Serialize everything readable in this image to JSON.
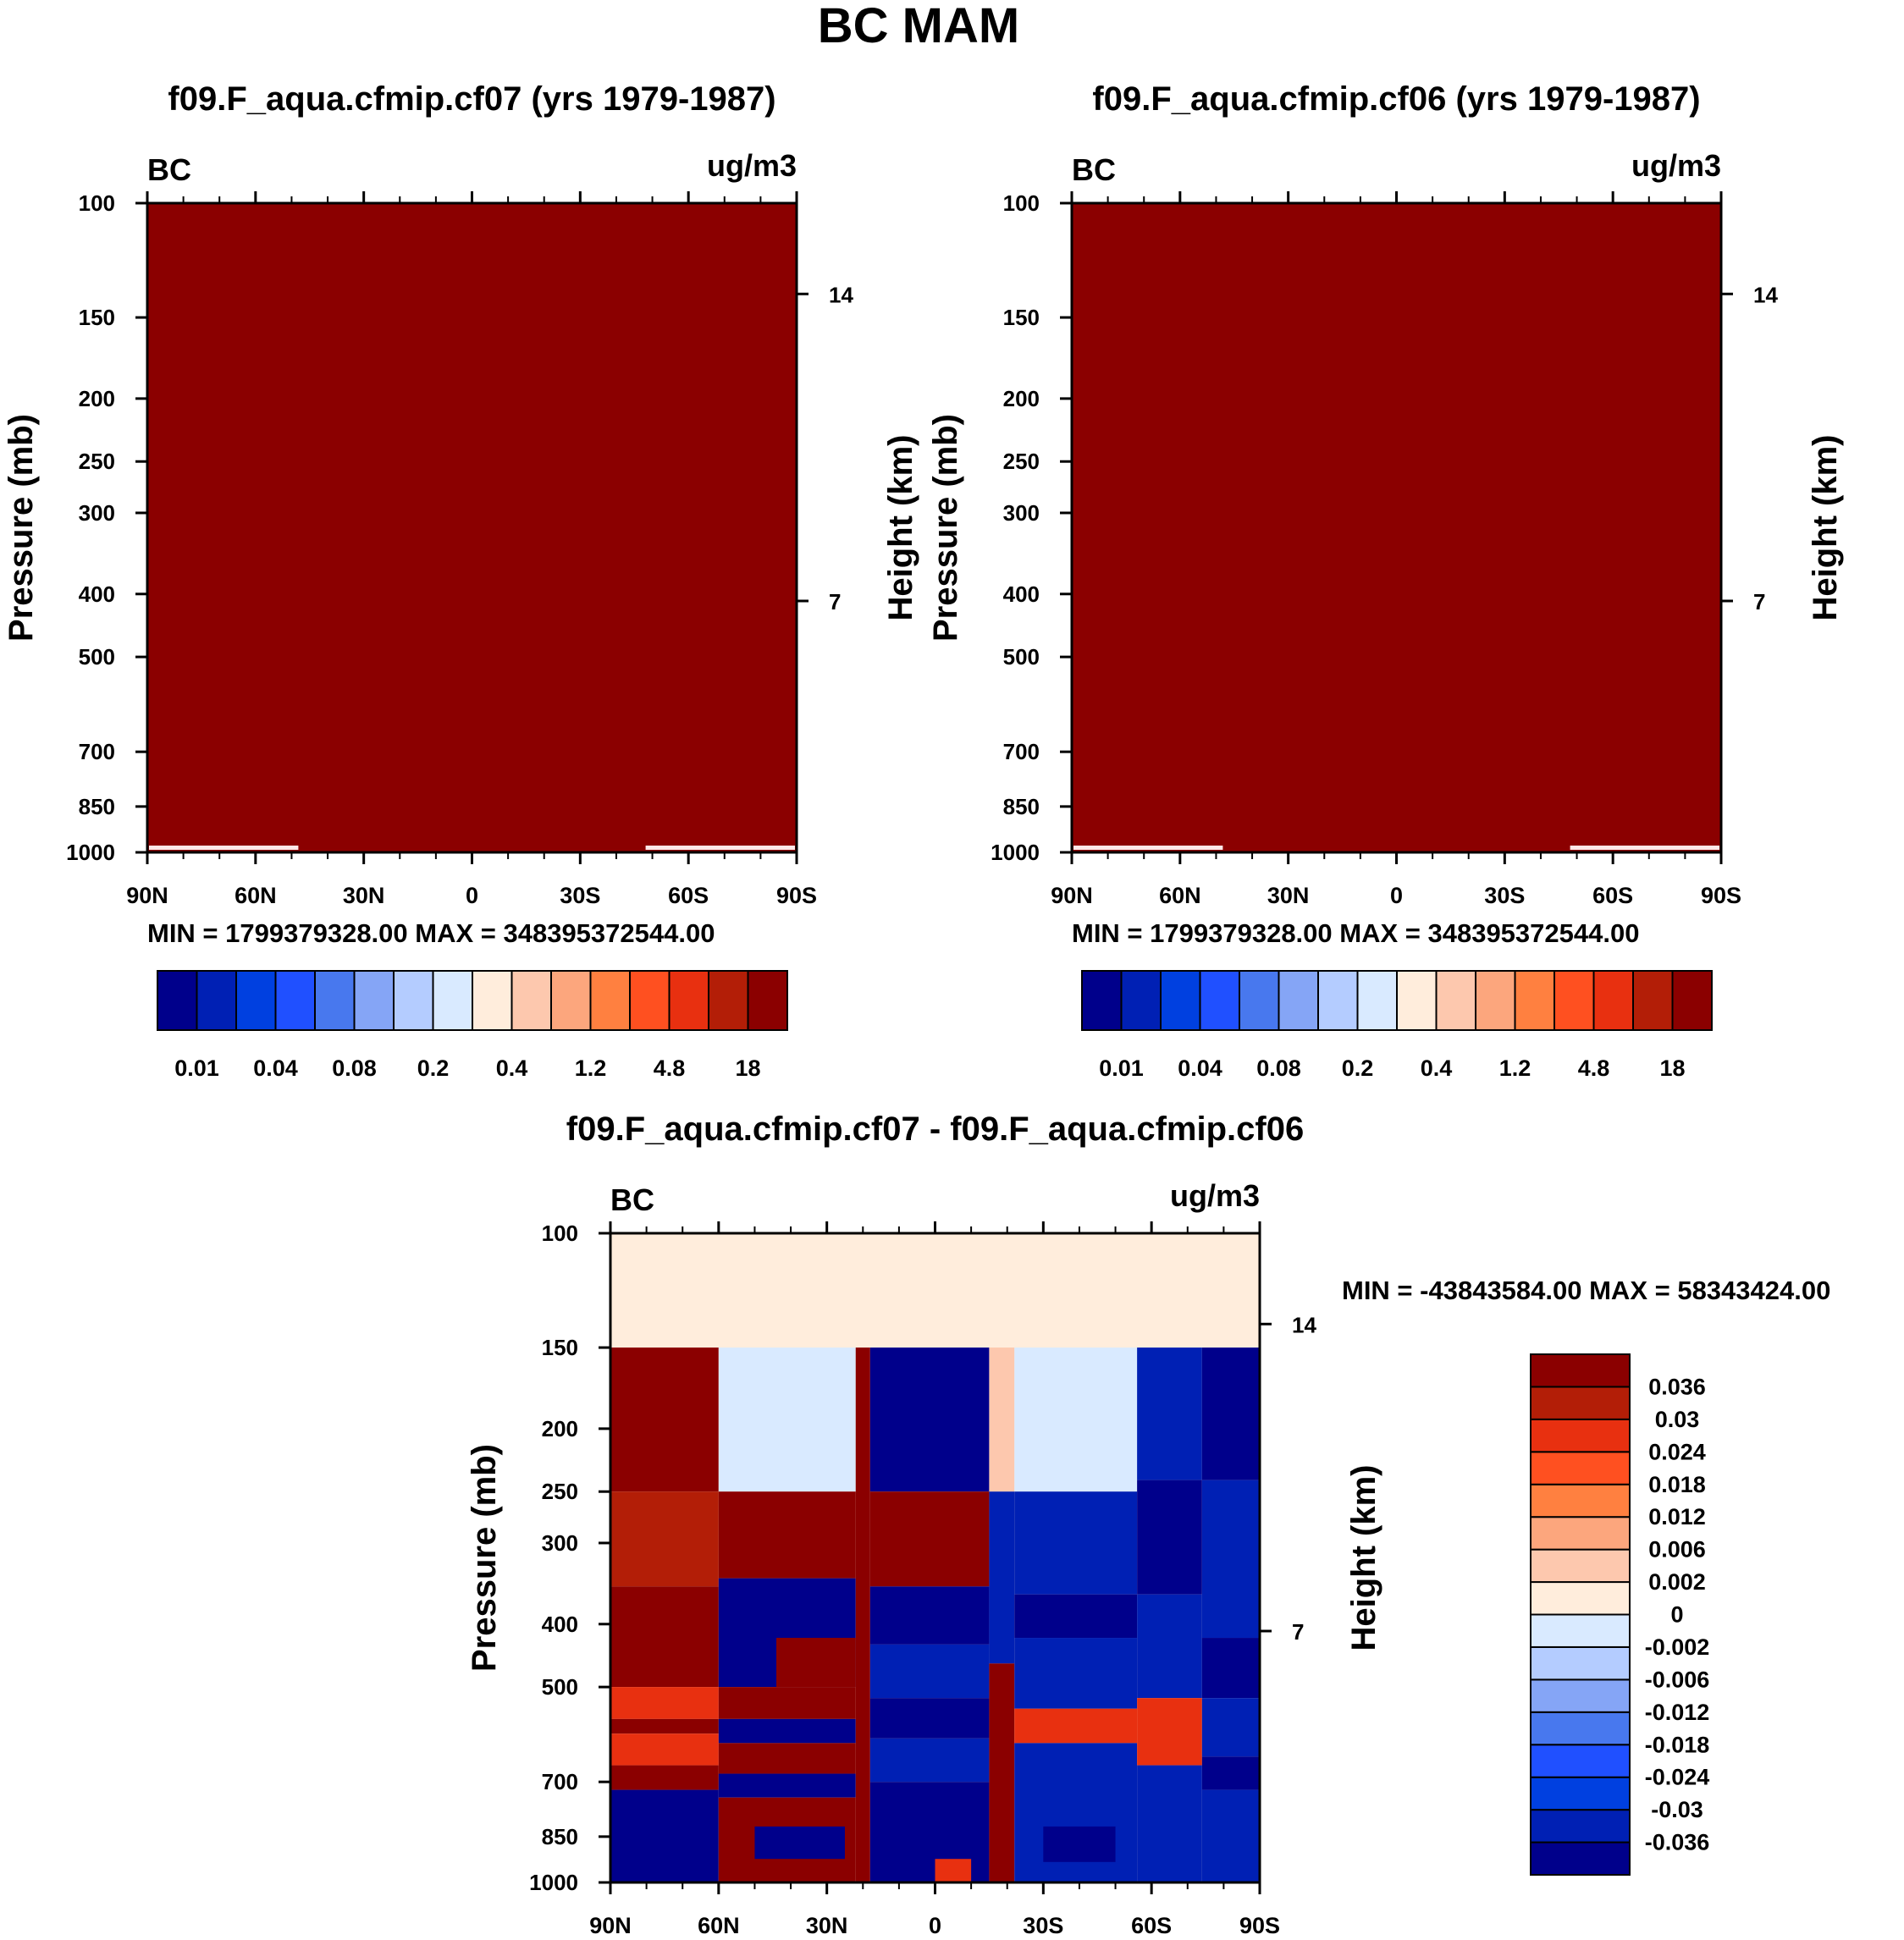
{
  "page_title": "BC MAM",
  "colors": {
    "seq": [
      "#00008b",
      "#0020b4",
      "#0040e0",
      "#2050ff",
      "#4878ee",
      "#85a5f6",
      "#b4ccff",
      "#d9eaff",
      "#ffeddc",
      "#fdc8ae",
      "#fca67d",
      "#ff8040",
      "#ff5020",
      "#e83010",
      "#b31e07",
      "#8b0000"
    ],
    "diff": [
      "#00008b",
      "#0020b4",
      "#0040e0",
      "#2050ff",
      "#4878ee",
      "#85a5f6",
      "#b4ccff",
      "#d9eaff",
      "#ffeddc",
      "#fdc8ae",
      "#fca67d",
      "#ff8040",
      "#ff5020",
      "#e83010",
      "#b31e07",
      "#8b0000"
    ]
  },
  "chart_data": [
    {
      "id": "top_left",
      "type": "heatmap",
      "title": "f09.F_aqua.cfmip.cf07 (yrs 1979-1987)",
      "variable": "BC",
      "units": "ug/m3",
      "ylabel": "Pressure (mb)",
      "ylabel_right": "Height (km)",
      "x_ticks": [
        "90N",
        "60N",
        "30N",
        "0",
        "30S",
        "60S",
        "90S"
      ],
      "x_values": [
        90,
        60,
        30,
        0,
        -30,
        -60,
        -90
      ],
      "y_ticks": [
        100,
        150,
        200,
        250,
        300,
        400,
        500,
        700,
        850,
        1000
      ],
      "y_range": [
        100,
        1000
      ],
      "right_ticks": [
        {
          "km": "14",
          "p": 138
        },
        {
          "km": "7",
          "p": 410
        }
      ],
      "min_max": "MIN = 1799379328.00   MAX = 348395372544.00",
      "field": "uniform maximum (dark red) over whole domain",
      "colorbar_labels": [
        "0.01",
        "0.04",
        "0.08",
        "0.2",
        "0.4",
        "1.2",
        "4.8",
        "18"
      ],
      "colorbar_levels": [
        0.005,
        0.01,
        0.02,
        0.04,
        0.06,
        0.08,
        0.1,
        0.2,
        0.3,
        0.4,
        0.8,
        1.2,
        2.4,
        4.8,
        9.6,
        18
      ]
    },
    {
      "id": "top_right",
      "type": "heatmap",
      "title": "f09.F_aqua.cfmip.cf06 (yrs 1979-1987)",
      "variable": "BC",
      "units": "ug/m3",
      "ylabel": "Pressure (mb)",
      "ylabel_right": "Height (km)",
      "x_ticks": [
        "90N",
        "60N",
        "30N",
        "0",
        "30S",
        "60S",
        "90S"
      ],
      "x_values": [
        90,
        60,
        30,
        0,
        -30,
        -60,
        -90
      ],
      "y_ticks": [
        100,
        150,
        200,
        250,
        300,
        400,
        500,
        700,
        850,
        1000
      ],
      "y_range": [
        100,
        1000
      ],
      "right_ticks": [
        {
          "km": "14",
          "p": 138
        },
        {
          "km": "7",
          "p": 410
        }
      ],
      "min_max": "MIN = 1799379328.00   MAX = 348395372544.00",
      "field": "uniform maximum (dark red) over whole domain",
      "colorbar_labels": [
        "0.01",
        "0.04",
        "0.08",
        "0.2",
        "0.4",
        "1.2",
        "4.8",
        "18"
      ],
      "colorbar_levels": [
        0.005,
        0.01,
        0.02,
        0.04,
        0.06,
        0.08,
        0.1,
        0.2,
        0.3,
        0.4,
        0.8,
        1.2,
        2.4,
        4.8,
        9.6,
        18
      ]
    },
    {
      "id": "difference",
      "type": "heatmap",
      "title": "f09.F_aqua.cfmip.cf07 - f09.F_aqua.cfmip.cf06",
      "variable": "BC",
      "units": "ug/m3",
      "ylabel": "Pressure (mb)",
      "ylabel_right": "Height (km)",
      "x_ticks": [
        "90N",
        "60N",
        "30N",
        "0",
        "30S",
        "60S",
        "90S"
      ],
      "x_values": [
        90,
        60,
        30,
        0,
        -30,
        -60,
        -90
      ],
      "y_ticks": [
        100,
        150,
        200,
        250,
        300,
        400,
        500,
        700,
        850,
        1000
      ],
      "y_range": [
        100,
        1000
      ],
      "right_ticks": [
        {
          "km": "14",
          "p": 138
        },
        {
          "km": "7",
          "p": 410
        }
      ],
      "min_max": "MIN = -43843584.00   MAX = 58343424.00",
      "colorbar_labels": [
        "0.036",
        "0.03",
        "0.024",
        "0.018",
        "0.012",
        "0.006",
        "0.002",
        "0",
        "-0.002",
        "-0.006",
        "-0.012",
        "-0.018",
        "-0.024",
        "-0.03",
        "-0.036"
      ],
      "blocks": [
        {
          "lat": [
            90,
            60
          ],
          "p": [
            100,
            150
          ],
          "c": 8
        },
        {
          "lat": [
            60,
            30
          ],
          "p": [
            100,
            150
          ],
          "c": 8
        },
        {
          "lat": [
            30,
            0
          ],
          "p": [
            100,
            150
          ],
          "c": 8
        },
        {
          "lat": [
            0,
            -30
          ],
          "p": [
            100,
            150
          ],
          "c": 8
        },
        {
          "lat": [
            -30,
            -60
          ],
          "p": [
            100,
            150
          ],
          "c": 8
        },
        {
          "lat": [
            -60,
            -90
          ],
          "p": [
            100,
            150
          ],
          "c": 8
        },
        {
          "lat": [
            90,
            60
          ],
          "p": [
            150,
            250
          ],
          "c": 15
        },
        {
          "lat": [
            90,
            60
          ],
          "p": [
            250,
            350
          ],
          "c": 14
        },
        {
          "lat": [
            90,
            60
          ],
          "p": [
            350,
            500
          ],
          "c": 15
        },
        {
          "lat": [
            90,
            60
          ],
          "p": [
            500,
            560
          ],
          "c": 13
        },
        {
          "lat": [
            90,
            60
          ],
          "p": [
            560,
            590
          ],
          "c": 15
        },
        {
          "lat": [
            90,
            60
          ],
          "p": [
            590,
            660
          ],
          "c": 13
        },
        {
          "lat": [
            90,
            60
          ],
          "p": [
            660,
            720
          ],
          "c": 15
        },
        {
          "lat": [
            90,
            60
          ],
          "p": [
            720,
            1000
          ],
          "c": 0
        },
        {
          "lat": [
            60,
            22
          ],
          "p": [
            150,
            250
          ],
          "c": 7
        },
        {
          "lat": [
            60,
            22
          ],
          "p": [
            250,
            340
          ],
          "c": 15
        },
        {
          "lat": [
            60,
            22
          ],
          "p": [
            340,
            500
          ],
          "c": 0
        },
        {
          "lat": [
            44,
            22
          ],
          "p": [
            420,
            500
          ],
          "c": 15
        },
        {
          "lat": [
            60,
            22
          ],
          "p": [
            500,
            560
          ],
          "c": 15
        },
        {
          "lat": [
            60,
            22
          ],
          "p": [
            560,
            610
          ],
          "c": 0
        },
        {
          "lat": [
            60,
            22
          ],
          "p": [
            610,
            680
          ],
          "c": 15
        },
        {
          "lat": [
            60,
            22
          ],
          "p": [
            680,
            740
          ],
          "c": 0
        },
        {
          "lat": [
            60,
            22
          ],
          "p": [
            740,
            1000
          ],
          "c": 15
        },
        {
          "lat": [
            50,
            25
          ],
          "p": [
            820,
            920
          ],
          "c": 0
        },
        {
          "lat": [
            22,
            18
          ],
          "p": [
            150,
            1000
          ],
          "c": 15
        },
        {
          "lat": [
            18,
            -15
          ],
          "p": [
            150,
            250
          ],
          "c": 0
        },
        {
          "lat": [
            18,
            -15
          ],
          "p": [
            250,
            350
          ],
          "c": 15
        },
        {
          "lat": [
            18,
            -15
          ],
          "p": [
            350,
            430
          ],
          "c": 0
        },
        {
          "lat": [
            18,
            -15
          ],
          "p": [
            430,
            520
          ],
          "c": 1
        },
        {
          "lat": [
            18,
            -15
          ],
          "p": [
            520,
            600
          ],
          "c": 0
        },
        {
          "lat": [
            18,
            -15
          ],
          "p": [
            600,
            700
          ],
          "c": 1
        },
        {
          "lat": [
            18,
            -15
          ],
          "p": [
            700,
            1000
          ],
          "c": 0
        },
        {
          "lat": [
            0,
            -10
          ],
          "p": [
            920,
            1000
          ],
          "c": 13
        },
        {
          "lat": [
            -15,
            -22
          ],
          "p": [
            150,
            250
          ],
          "c": 9
        },
        {
          "lat": [
            -15,
            -22
          ],
          "p": [
            250,
            460
          ],
          "c": 1
        },
        {
          "lat": [
            -15,
            -22
          ],
          "p": [
            460,
            1000
          ],
          "c": 15
        },
        {
          "lat": [
            -22,
            -56
          ],
          "p": [
            150,
            250
          ],
          "c": 7
        },
        {
          "lat": [
            -22,
            -56
          ],
          "p": [
            250,
            360
          ],
          "c": 1
        },
        {
          "lat": [
            -22,
            -56
          ],
          "p": [
            360,
            420
          ],
          "c": 0
        },
        {
          "lat": [
            -22,
            -56
          ],
          "p": [
            420,
            540
          ],
          "c": 1
        },
        {
          "lat": [
            -22,
            -56
          ],
          "p": [
            540,
            610
          ],
          "c": 13
        },
        {
          "lat": [
            -22,
            -56
          ],
          "p": [
            610,
            1000
          ],
          "c": 1
        },
        {
          "lat": [
            -30,
            -50
          ],
          "p": [
            820,
            930
          ],
          "c": 0
        },
        {
          "lat": [
            -56,
            -74
          ],
          "p": [
            150,
            240
          ],
          "c": 1
        },
        {
          "lat": [
            -56,
            -74
          ],
          "p": [
            240,
            360
          ],
          "c": 0
        },
        {
          "lat": [
            -56,
            -74
          ],
          "p": [
            360,
            520
          ],
          "c": 1
        },
        {
          "lat": [
            -56,
            -74
          ],
          "p": [
            520,
            660
          ],
          "c": 13
        },
        {
          "lat": [
            -56,
            -74
          ],
          "p": [
            660,
            1000
          ],
          "c": 1
        },
        {
          "lat": [
            -74,
            -90
          ],
          "p": [
            150,
            240
          ],
          "c": 0
        },
        {
          "lat": [
            -74,
            -90
          ],
          "p": [
            240,
            420
          ],
          "c": 1
        },
        {
          "lat": [
            -74,
            -90
          ],
          "p": [
            420,
            520
          ],
          "c": 0
        },
        {
          "lat": [
            -74,
            -90
          ],
          "p": [
            520,
            640
          ],
          "c": 1
        },
        {
          "lat": [
            -74,
            -90
          ],
          "p": [
            640,
            720
          ],
          "c": 0
        },
        {
          "lat": [
            -74,
            -90
          ],
          "p": [
            720,
            1000
          ],
          "c": 1
        }
      ]
    }
  ]
}
